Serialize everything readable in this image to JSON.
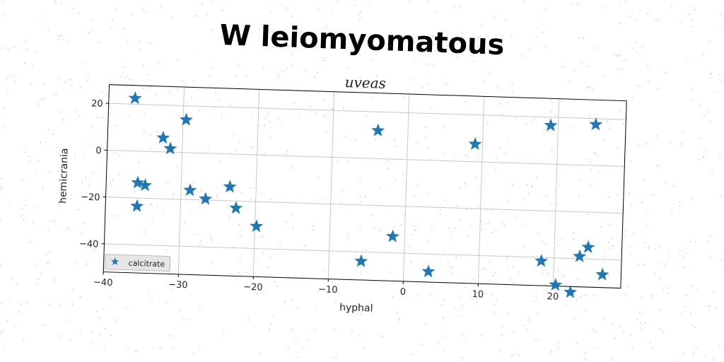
{
  "header": {
    "title": "W leiomyomatous"
  },
  "chart_data": {
    "type": "scatter",
    "title": "uveas",
    "xlabel": "hyphal",
    "ylabel": "hemicrania",
    "xlim": [
      -40,
      29
    ],
    "ylim": [
      -52,
      28
    ],
    "xticks": [
      -40,
      -30,
      -20,
      -10,
      0,
      10,
      20
    ],
    "yticks": [
      -40,
      -20,
      0,
      20
    ],
    "grid": true,
    "legend": {
      "position": "lower-left",
      "entries": [
        "calcitrate"
      ]
    },
    "series": [
      {
        "name": "calcitrate",
        "marker": "star",
        "color": "#1f77b4",
        "points": [
          {
            "x": -36.5,
            "y": 22.5
          },
          {
            "x": -29.6,
            "y": 14.0
          },
          {
            "x": -32.6,
            "y": 6.0
          },
          {
            "x": -31.6,
            "y": 1.5
          },
          {
            "x": -35.8,
            "y": -13.5
          },
          {
            "x": -34.8,
            "y": -14.5
          },
          {
            "x": -35.8,
            "y": -23.5
          },
          {
            "x": -28.8,
            "y": -16.0
          },
          {
            "x": -26.7,
            "y": -19.5
          },
          {
            "x": -23.5,
            "y": -14.0
          },
          {
            "x": -22.6,
            "y": -23.0
          },
          {
            "x": -19.8,
            "y": -30.5
          },
          {
            "x": -4.0,
            "y": 12.0
          },
          {
            "x": 9.0,
            "y": 7.5
          },
          {
            "x": 19.0,
            "y": 16.5
          },
          {
            "x": 25.0,
            "y": 17.5
          },
          {
            "x": -1.6,
            "y": -33.0
          },
          {
            "x": -5.7,
            "y": -44.0
          },
          {
            "x": 3.3,
            "y": -47.5
          },
          {
            "x": 18.3,
            "y": -41.5
          },
          {
            "x": 20.3,
            "y": -51.5
          },
          {
            "x": 22.3,
            "y": -54.5
          },
          {
            "x": 23.4,
            "y": -39.0
          },
          {
            "x": 24.5,
            "y": -35.0
          },
          {
            "x": 26.5,
            "y": -46.5
          }
        ]
      }
    ]
  }
}
